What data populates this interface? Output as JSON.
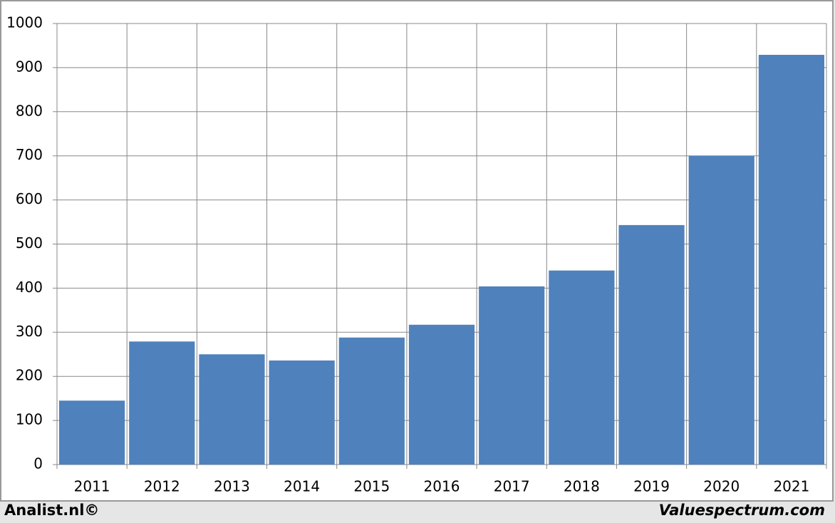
{
  "chart_data": {
    "type": "bar",
    "categories": [
      "2011",
      "2012",
      "2013",
      "2014",
      "2015",
      "2016",
      "2017",
      "2018",
      "2019",
      "2020",
      "2021"
    ],
    "values": [
      145,
      279,
      250,
      236,
      288,
      317,
      404,
      440,
      543,
      700,
      929
    ],
    "color": "#4f81bd",
    "ylim": [
      0,
      1000
    ],
    "yticks": [
      0,
      100,
      200,
      300,
      400,
      500,
      600,
      700,
      800,
      900,
      1000
    ],
    "grid": true
  },
  "footer": {
    "left": "Analist.nl©",
    "right": "Valuespectrum.com"
  }
}
